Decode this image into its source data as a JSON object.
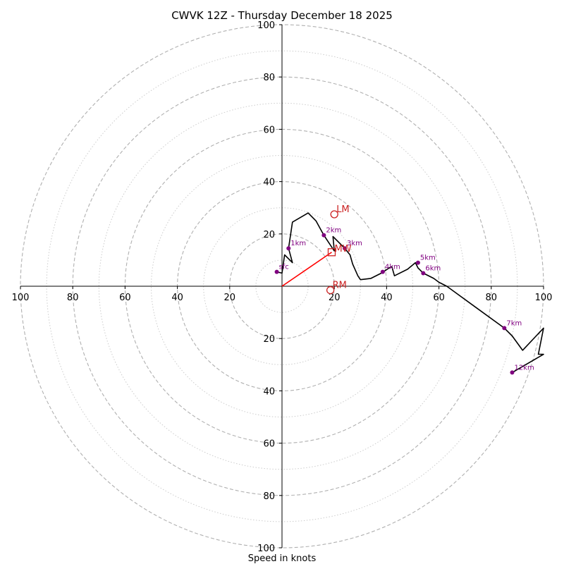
{
  "chart_data": {
    "type": "hodograph",
    "title": "CWVK 12Z - Thursday December 18 2025",
    "xlabel": "Speed in knots",
    "range": [
      -100,
      100
    ],
    "major_rings": [
      20,
      40,
      60,
      80,
      100
    ],
    "minor_rings": [
      10,
      30,
      50,
      70,
      90
    ],
    "x_tick_labels": [
      "100",
      "80",
      "60",
      "40",
      "20",
      "20",
      "40",
      "60",
      "80",
      "100"
    ],
    "x_tick_values": [
      -100,
      -80,
      -60,
      -40,
      -20,
      20,
      40,
      60,
      80,
      100
    ],
    "y_tick_labels": [
      "100",
      "80",
      "60",
      "40",
      "20",
      "20",
      "40",
      "60",
      "80",
      "100"
    ],
    "y_tick_values": [
      100,
      80,
      60,
      40,
      20,
      -20,
      -40,
      -60,
      -80,
      -100
    ],
    "grid": true,
    "trace": {
      "color": "#000000",
      "points": [
        [
          -2,
          5.5
        ],
        [
          0,
          5
        ],
        [
          1,
          12
        ],
        [
          4,
          9
        ],
        [
          2.5,
          14.5
        ],
        [
          4,
          24.5
        ],
        [
          10,
          28
        ],
        [
          13,
          25
        ],
        [
          16,
          19.5
        ],
        [
          19,
          15
        ],
        [
          20,
          13.5
        ],
        [
          19.5,
          19
        ],
        [
          24,
          14.5
        ],
        [
          26,
          12
        ],
        [
          27,
          8.5
        ],
        [
          29,
          4
        ],
        [
          30,
          2.5
        ],
        [
          34,
          3
        ],
        [
          38,
          5
        ],
        [
          41,
          7
        ],
        [
          42,
          7.5
        ],
        [
          43,
          4
        ],
        [
          48,
          6.5
        ],
        [
          51,
          9
        ],
        [
          52,
          7
        ],
        [
          54,
          5
        ],
        [
          58,
          3
        ],
        [
          60,
          1.5
        ],
        [
          63,
          0
        ],
        [
          74,
          -8
        ],
        [
          85,
          -16
        ],
        [
          88,
          -19
        ],
        [
          92,
          -24.5
        ],
        [
          100,
          -16
        ],
        [
          98,
          -26
        ],
        [
          100,
          -26
        ],
        [
          88,
          -33
        ]
      ]
    },
    "height_markers": [
      {
        "label": "sfc",
        "u": -2,
        "v": 5.5
      },
      {
        "label": "1km",
        "u": 2.5,
        "v": 14.5
      },
      {
        "label": "2km",
        "u": 16,
        "v": 19.5
      },
      {
        "label": "3km",
        "u": 24,
        "v": 14.5
      },
      {
        "label": "4km",
        "u": 38.5,
        "v": 5.5
      },
      {
        "label": "5km",
        "u": 52,
        "v": 9
      },
      {
        "label": "6km",
        "u": 54,
        "v": 5
      },
      {
        "label": "7km",
        "u": 85,
        "v": -16
      },
      {
        "label": "12km",
        "u": 88,
        "v": -33
      }
    ],
    "mean_wind": {
      "label": "MW",
      "u": 19,
      "v": 13
    },
    "left_mover": {
      "label": "LM",
      "u": 20,
      "v": 27.5
    },
    "right_mover": {
      "label": "RM",
      "u": 18.5,
      "v": -1.5
    },
    "colors": {
      "marker": "#800080",
      "motion": "#cc2222",
      "shear_vector": "#ff0000",
      "grid": "#b0b0b0"
    }
  }
}
